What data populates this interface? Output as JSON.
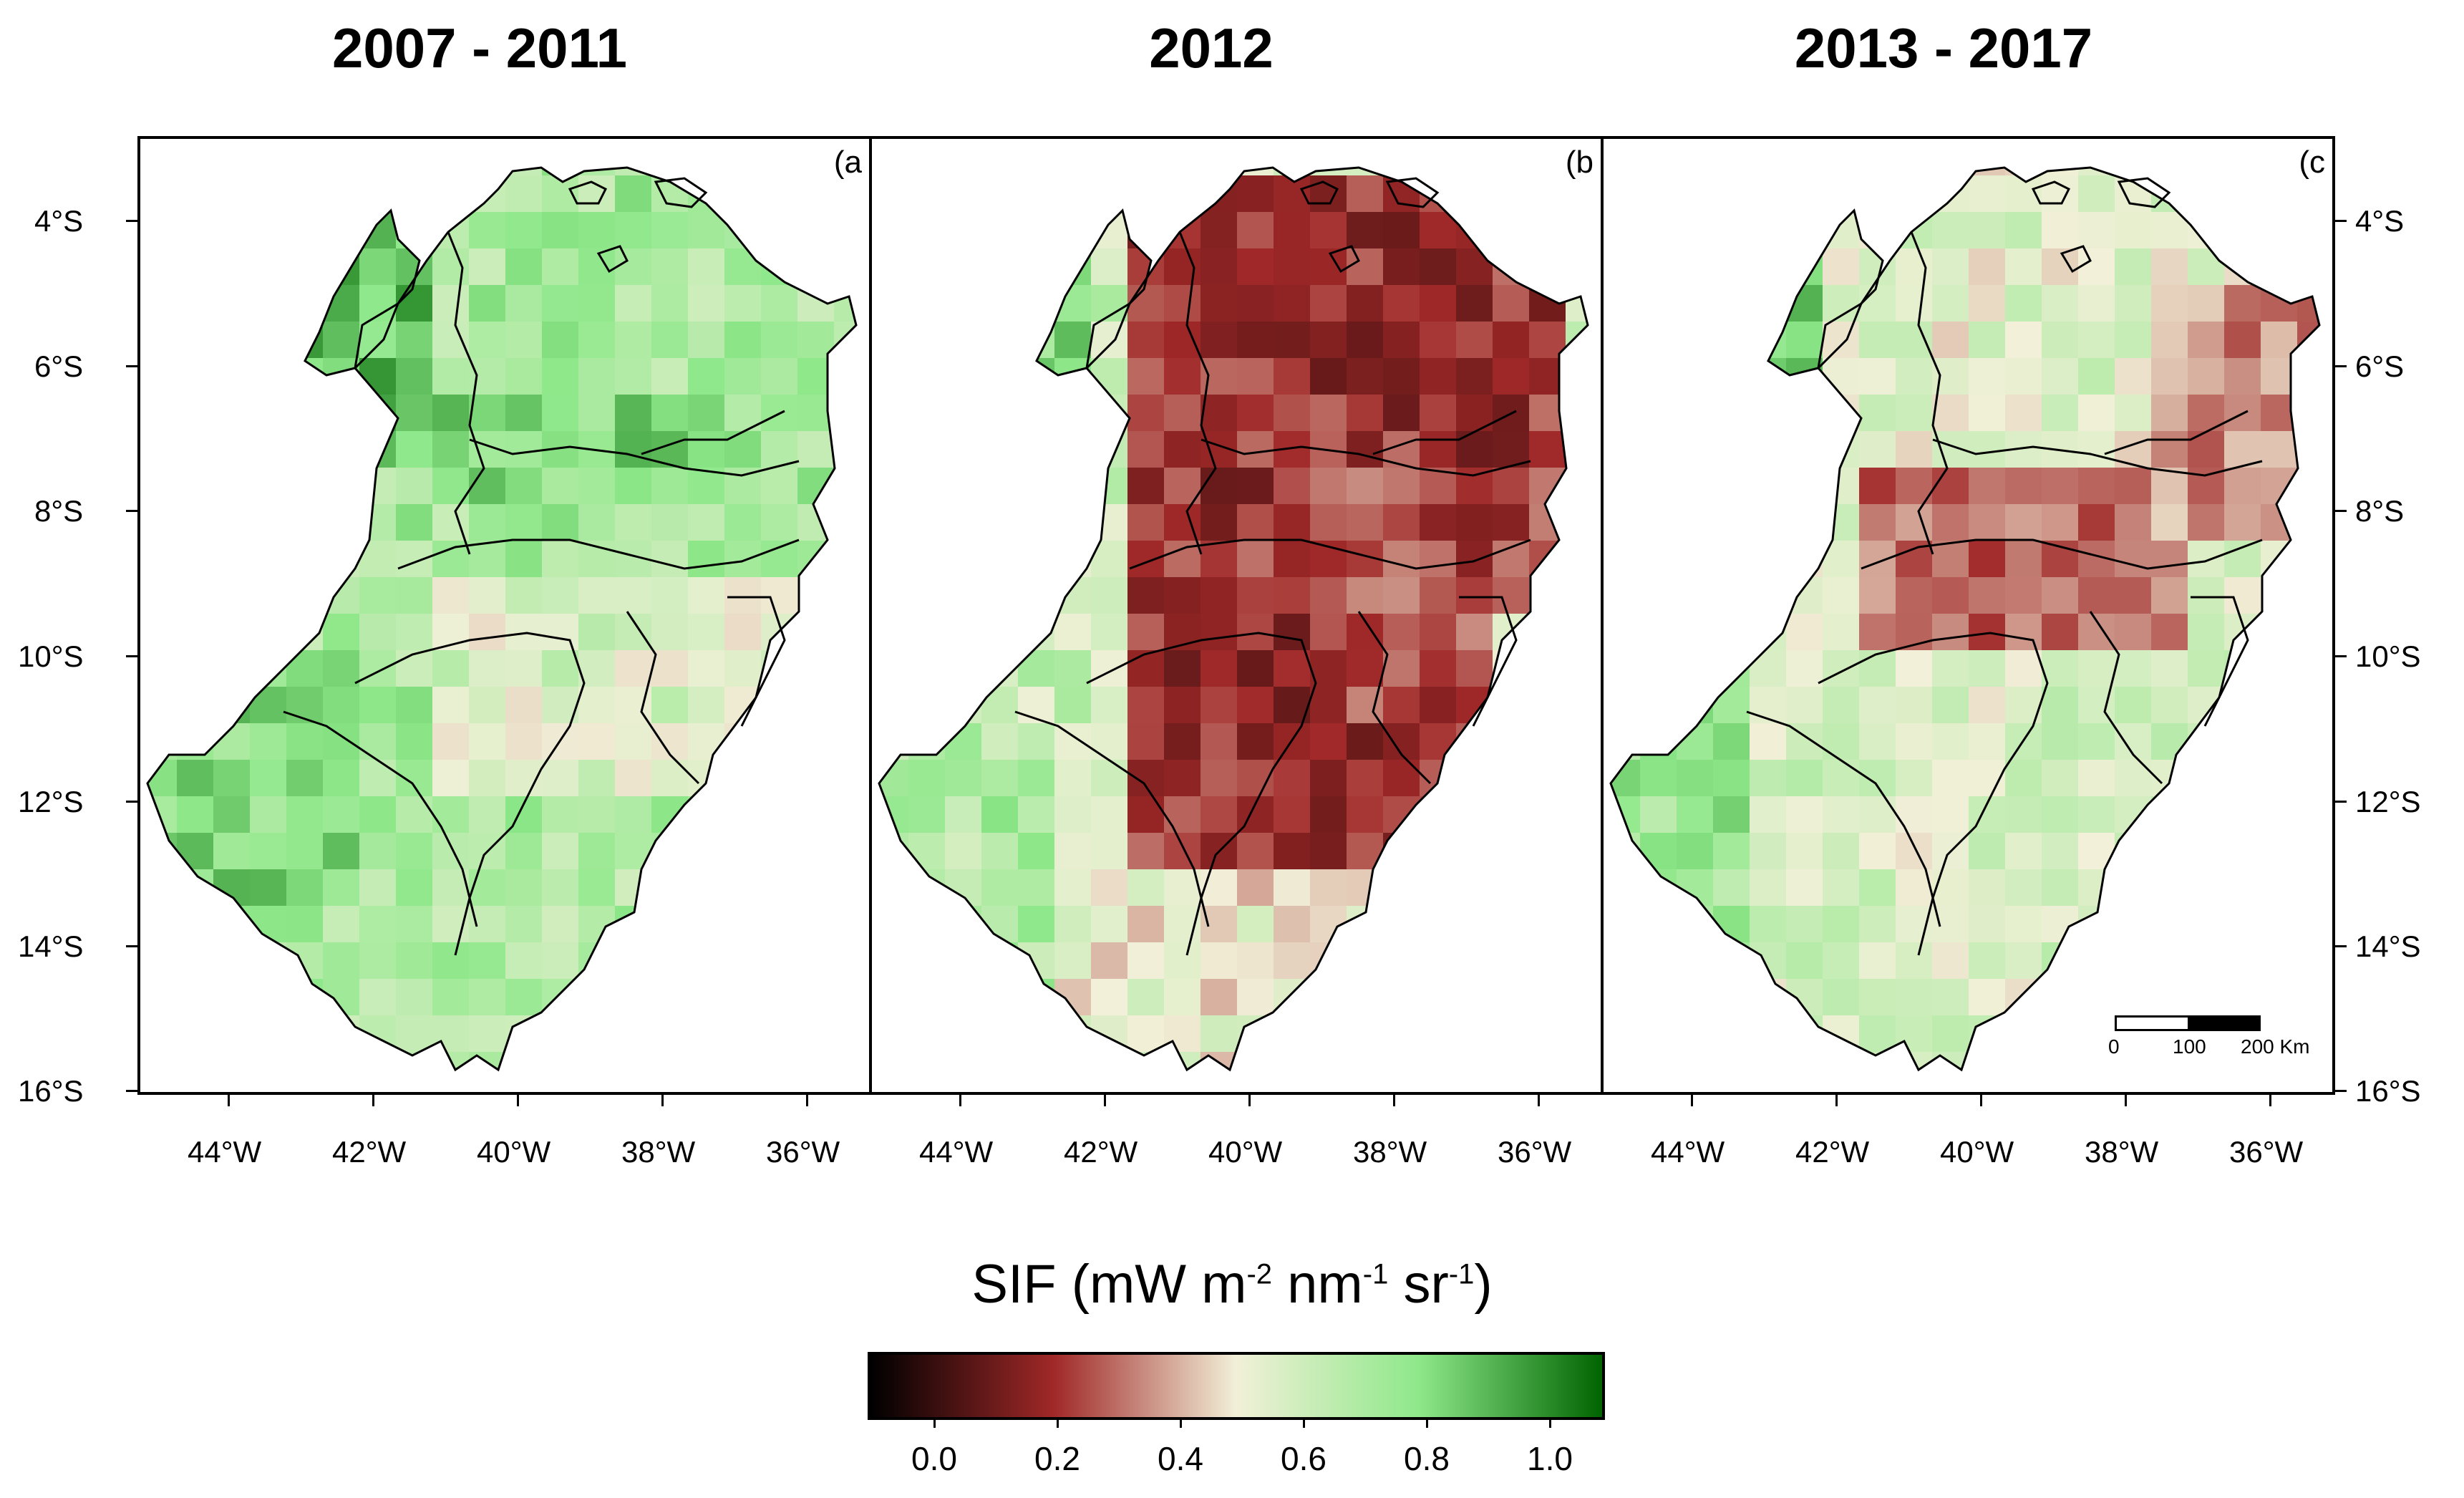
{
  "figure": {
    "titles": [
      "2007 - 2011",
      "2012",
      "2013 - 2017"
    ],
    "panel_labels": [
      "(a",
      "(b",
      "(c"
    ],
    "latitude_labels": [
      "4°S",
      "6°S",
      "8°S",
      "10°S",
      "12°S",
      "14°S",
      "16°S"
    ],
    "longitude_labels": [
      "44°W",
      "42°W",
      "40°W",
      "38°W",
      "36°W"
    ],
    "legend_title": "SIF (mW m",
    "legend_title_parts": [
      "SIF (mW m",
      "-2",
      " nm",
      "-1",
      " sr",
      "-1",
      ")"
    ],
    "colorbar_ticks": [
      "0.0",
      "0.2",
      "0.4",
      "0.6",
      "0.8",
      "1.0"
    ],
    "scale_bar": {
      "labels": [
        "0",
        "100",
        "200 Km"
      ]
    },
    "colors": {
      "low": "#000000",
      "mid_low": "#a02828",
      "mid": "#f2f0d8",
      "mid_high": "#8ee88a",
      "high": "#006400"
    }
  },
  "map_data": {
    "variable": "SIF",
    "units": "mW m-2 nm-1 sr-1",
    "color_range": [
      -0.1,
      1.1
    ],
    "lon_range": [
      -45.3,
      -35.3
    ],
    "lat_range": [
      -16.2,
      -2.9
    ],
    "panels": [
      {
        "period": "2007 - 2011",
        "mean_level": 0.68
      },
      {
        "period": "2012",
        "mean_level": 0.35
      },
      {
        "period": "2013 - 2017",
        "mean_level": 0.5
      }
    ]
  }
}
